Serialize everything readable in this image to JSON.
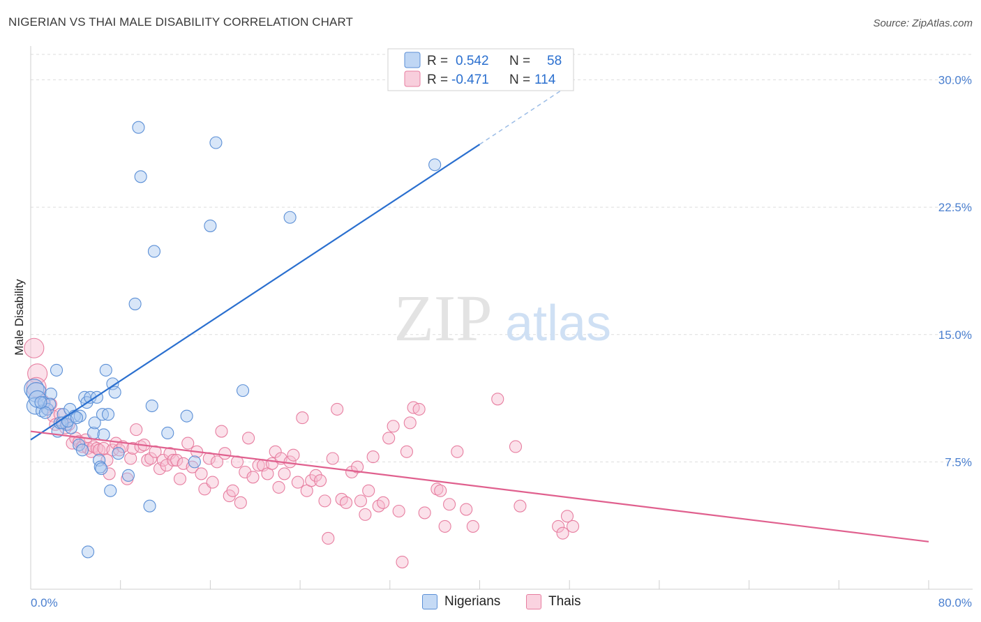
{
  "header": {
    "title": "NIGERIAN VS THAI MALE DISABILITY CORRELATION CHART",
    "source": "Source: ZipAtlas.com"
  },
  "watermark": {
    "zip": "ZIP",
    "atlas": "atlas"
  },
  "colors": {
    "blue_fill": "#a9c8f0",
    "blue_stroke": "#5b8fd6",
    "blue_line": "#2a6fcf",
    "pink_fill": "#f6bdd0",
    "pink_stroke": "#e77ea0",
    "pink_line": "#e0608e",
    "tick_text": "#4a7fcf",
    "grid": "#dddddd"
  },
  "legend": {
    "rows": [
      {
        "r_label": "R =",
        "r_value": "0.542",
        "n_label": "N =",
        "n_value": "58"
      },
      {
        "r_label": "R =",
        "r_value": "-0.471",
        "n_label": "N =",
        "n_value": "114"
      }
    ],
    "bottom": [
      "Nigerians",
      "Thais"
    ]
  },
  "chart_data": {
    "type": "scatter",
    "xlabel": "",
    "ylabel": "Male Disability",
    "xlim": [
      0,
      80
    ],
    "ylim": [
      0,
      31.5
    ],
    "x_tick_labels": [
      "0.0%",
      "80.0%"
    ],
    "y_ticks": [
      7.5,
      15.0,
      22.5,
      30.0
    ],
    "y_tick_labels": [
      "7.5%",
      "15.0%",
      "22.5%",
      "30.0%"
    ],
    "grid": true,
    "legend_position": "top-center",
    "series": [
      {
        "name": "Nigerians",
        "R": 0.542,
        "N": 58,
        "trend": {
          "x": [
            0,
            40
          ],
          "y": [
            8.8,
            26.2
          ],
          "dashed_extension_to": [
            48,
            29.7
          ]
        },
        "points": [
          [
            0.3,
            11.8
          ],
          [
            0.5,
            11.6
          ],
          [
            0.4,
            10.8
          ],
          [
            0.6,
            11.2
          ],
          [
            1.0,
            10.5
          ],
          [
            1.2,
            11.0
          ],
          [
            1.5,
            10.6
          ],
          [
            1.8,
            11.5
          ],
          [
            2.3,
            12.9
          ],
          [
            2.4,
            9.3
          ],
          [
            2.6,
            9.8
          ],
          [
            2.9,
            10.3
          ],
          [
            3.2,
            9.7
          ],
          [
            3.5,
            10.6
          ],
          [
            3.6,
            9.5
          ],
          [
            3.9,
            10.2
          ],
          [
            4.3,
            8.5
          ],
          [
            4.4,
            10.2
          ],
          [
            4.6,
            8.2
          ],
          [
            4.8,
            11.3
          ],
          [
            5.0,
            11.0
          ],
          [
            5.3,
            11.3
          ],
          [
            5.6,
            9.2
          ],
          [
            5.7,
            9.8
          ],
          [
            5.9,
            11.3
          ],
          [
            6.1,
            7.6
          ],
          [
            6.2,
            7.2
          ],
          [
            6.4,
            10.3
          ],
          [
            6.5,
            9.1
          ],
          [
            6.7,
            12.9
          ],
          [
            6.9,
            10.3
          ],
          [
            7.1,
            5.8
          ],
          [
            7.3,
            12.1
          ],
          [
            7.5,
            11.6
          ],
          [
            7.8,
            8.0
          ],
          [
            8.7,
            6.7
          ],
          [
            9.3,
            16.8
          ],
          [
            9.6,
            27.2
          ],
          [
            9.8,
            24.3
          ],
          [
            10.6,
            4.9
          ],
          [
            10.8,
            10.8
          ],
          [
            11.0,
            19.9
          ],
          [
            12.2,
            9.2
          ],
          [
            13.9,
            10.2
          ],
          [
            14.6,
            7.5
          ],
          [
            16.0,
            21.4
          ],
          [
            16.5,
            26.3
          ],
          [
            18.9,
            11.7
          ],
          [
            23.1,
            21.9
          ],
          [
            36.0,
            25.0
          ],
          [
            5.1,
            2.2
          ],
          [
            1.7,
            10.9
          ],
          [
            2.8,
            9.8
          ],
          [
            3.3,
            9.9
          ],
          [
            1.3,
            10.4
          ],
          [
            4.1,
            10.1
          ],
          [
            0.9,
            11.0
          ],
          [
            6.3,
            7.1
          ]
        ]
      },
      {
        "name": "Thais",
        "R": -0.471,
        "N": 114,
        "trend": {
          "x": [
            0,
            80
          ],
          "y": [
            9.3,
            2.8
          ]
        },
        "points": [
          [
            0.3,
            14.2
          ],
          [
            0.6,
            12.7
          ],
          [
            0.5,
            11.9
          ],
          [
            1.1,
            11.1
          ],
          [
            1.5,
            10.6
          ],
          [
            1.8,
            10.9
          ],
          [
            2.0,
            10.2
          ],
          [
            2.2,
            9.7
          ],
          [
            2.6,
            10.3
          ],
          [
            2.9,
            9.8
          ],
          [
            3.1,
            9.5
          ],
          [
            3.4,
            9.7
          ],
          [
            3.7,
            8.6
          ],
          [
            4.0,
            8.9
          ],
          [
            4.3,
            8.7
          ],
          [
            4.6,
            8.4
          ],
          [
            4.9,
            8.8
          ],
          [
            5.1,
            8.3
          ],
          [
            5.4,
            8.1
          ],
          [
            5.6,
            8.4
          ],
          [
            5.9,
            8.3
          ],
          [
            6.1,
            8.2
          ],
          [
            6.5,
            8.3
          ],
          [
            6.8,
            7.6
          ],
          [
            7.0,
            6.8
          ],
          [
            7.3,
            8.2
          ],
          [
            7.6,
            8.6
          ],
          [
            7.9,
            8.2
          ],
          [
            8.2,
            8.4
          ],
          [
            8.6,
            6.5
          ],
          [
            8.9,
            7.7
          ],
          [
            9.1,
            8.3
          ],
          [
            9.4,
            9.4
          ],
          [
            9.8,
            8.4
          ],
          [
            10.1,
            8.5
          ],
          [
            10.4,
            7.6
          ],
          [
            10.7,
            7.7
          ],
          [
            11.1,
            8.1
          ],
          [
            11.5,
            7.1
          ],
          [
            11.8,
            7.6
          ],
          [
            12.1,
            7.3
          ],
          [
            12.4,
            8.0
          ],
          [
            12.7,
            7.6
          ],
          [
            13.0,
            7.6
          ],
          [
            13.3,
            6.5
          ],
          [
            13.6,
            7.4
          ],
          [
            14.0,
            8.6
          ],
          [
            14.4,
            7.2
          ],
          [
            14.8,
            8.1
          ],
          [
            15.2,
            6.8
          ],
          [
            15.5,
            5.9
          ],
          [
            15.9,
            7.7
          ],
          [
            16.2,
            6.3
          ],
          [
            16.6,
            7.5
          ],
          [
            17.0,
            9.3
          ],
          [
            17.3,
            8.0
          ],
          [
            17.7,
            5.5
          ],
          [
            18.0,
            5.8
          ],
          [
            18.4,
            7.5
          ],
          [
            18.7,
            5.1
          ],
          [
            19.1,
            6.9
          ],
          [
            19.4,
            8.9
          ],
          [
            19.8,
            6.6
          ],
          [
            20.3,
            7.3
          ],
          [
            20.7,
            7.3
          ],
          [
            21.1,
            6.8
          ],
          [
            21.5,
            7.4
          ],
          [
            21.8,
            8.1
          ],
          [
            22.1,
            6.0
          ],
          [
            22.3,
            7.7
          ],
          [
            22.6,
            6.8
          ],
          [
            23.1,
            7.5
          ],
          [
            23.4,
            7.9
          ],
          [
            23.8,
            6.3
          ],
          [
            24.2,
            10.1
          ],
          [
            24.6,
            5.8
          ],
          [
            25.0,
            6.4
          ],
          [
            25.4,
            6.7
          ],
          [
            25.8,
            6.4
          ],
          [
            26.2,
            5.2
          ],
          [
            26.5,
            3.0
          ],
          [
            26.9,
            7.7
          ],
          [
            27.3,
            10.6
          ],
          [
            27.7,
            5.3
          ],
          [
            28.1,
            5.1
          ],
          [
            28.6,
            6.9
          ],
          [
            29.1,
            7.2
          ],
          [
            29.4,
            5.2
          ],
          [
            29.8,
            4.4
          ],
          [
            30.1,
            5.8
          ],
          [
            30.5,
            7.8
          ],
          [
            31.0,
            4.9
          ],
          [
            31.4,
            5.1
          ],
          [
            31.9,
            8.9
          ],
          [
            32.3,
            9.6
          ],
          [
            32.8,
            4.6
          ],
          [
            33.1,
            1.6
          ],
          [
            33.5,
            8.1
          ],
          [
            33.8,
            9.8
          ],
          [
            34.1,
            10.7
          ],
          [
            34.6,
            10.6
          ],
          [
            35.1,
            4.5
          ],
          [
            36.2,
            5.9
          ],
          [
            36.5,
            5.8
          ],
          [
            36.9,
            3.7
          ],
          [
            37.3,
            5.0
          ],
          [
            38.0,
            8.1
          ],
          [
            38.8,
            4.7
          ],
          [
            39.4,
            3.7
          ],
          [
            41.6,
            11.2
          ],
          [
            43.2,
            8.4
          ],
          [
            43.6,
            4.9
          ],
          [
            47.0,
            3.7
          ],
          [
            47.4,
            3.3
          ],
          [
            47.8,
            4.3
          ],
          [
            48.3,
            3.7
          ]
        ]
      }
    ]
  }
}
